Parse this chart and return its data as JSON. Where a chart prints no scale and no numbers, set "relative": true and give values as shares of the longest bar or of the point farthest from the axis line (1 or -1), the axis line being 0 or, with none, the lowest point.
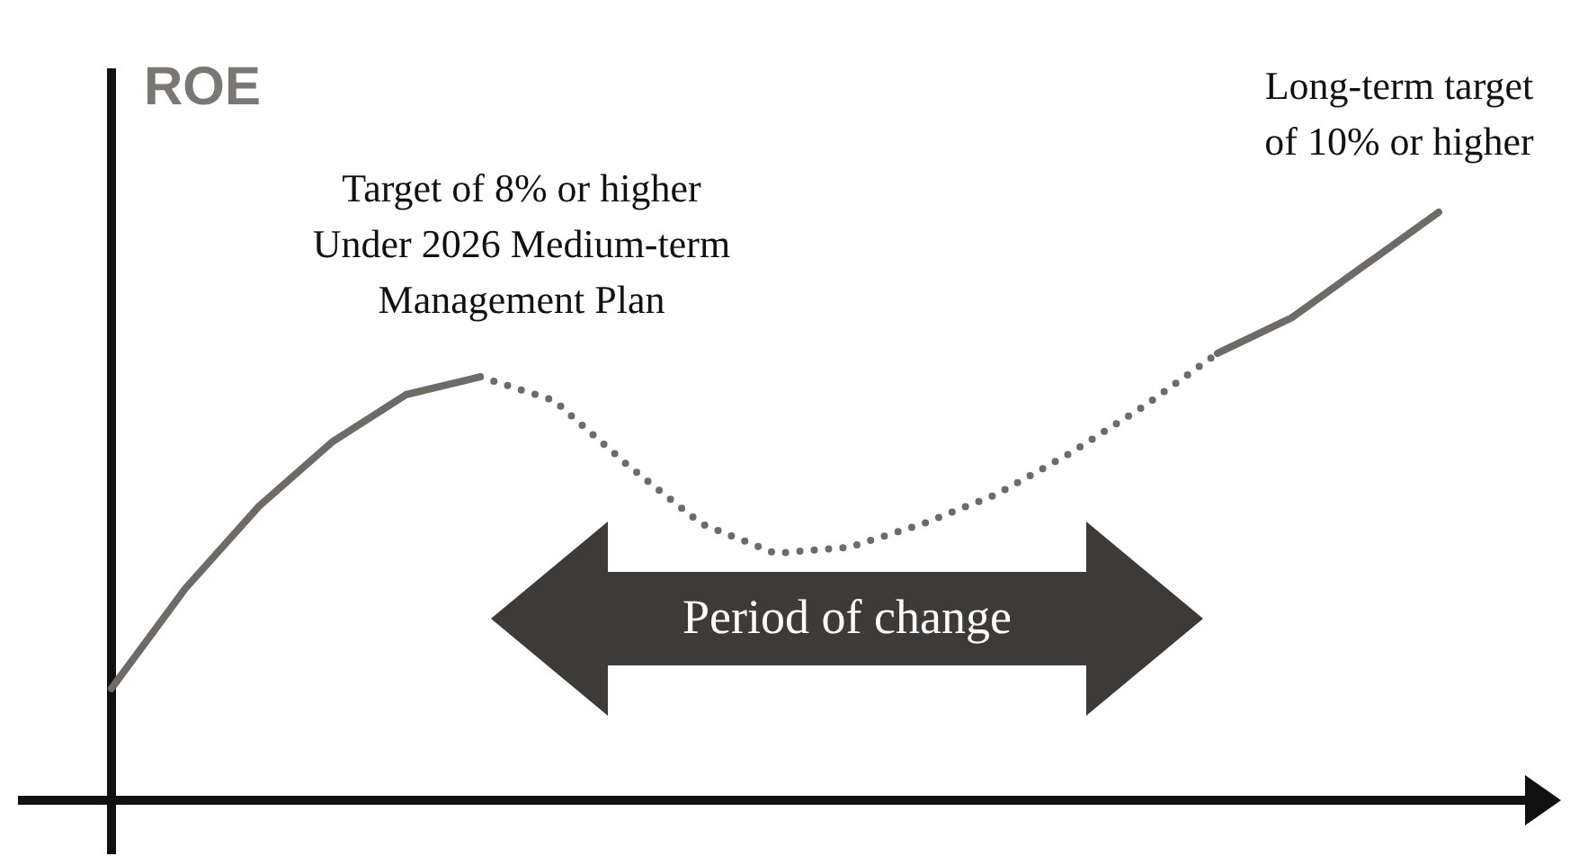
{
  "chart_data": {
    "type": "line",
    "relative": true,
    "ylabel": "ROE",
    "categories": [
      null,
      null,
      null,
      null,
      null,
      null,
      null,
      null,
      null,
      null,
      null,
      null,
      null,
      null,
      null,
      null,
      null,
      null,
      null
    ],
    "series": [
      {
        "color": "#6e6a66",
        "line_style": "solid",
        "values": [
          0.19,
          0.36,
          0.5,
          0.61,
          0.69,
          0.72,
          null,
          null,
          null,
          null,
          null,
          null,
          null,
          null,
          null,
          null,
          null,
          null,
          null
        ]
      },
      {
        "color": "#6e6a66",
        "line_style": "dotted",
        "values": [
          null,
          null,
          null,
          null,
          null,
          0.72,
          0.68,
          0.57,
          0.47,
          0.42,
          0.43,
          0.47,
          0.52,
          0.59,
          0.67,
          0.76,
          null,
          null,
          null
        ]
      },
      {
        "color": "#6e6a66",
        "line_style": "solid",
        "values": [
          null,
          null,
          null,
          null,
          null,
          null,
          null,
          null,
          null,
          null,
          null,
          null,
          null,
          null,
          null,
          0.76,
          0.82,
          0.91,
          1
        ]
      }
    ],
    "annotations": [
      "Target of 8% or higher\nUnder 2026 Medium-term\nManagement Plan",
      "Long-term target\nof 10% or higher",
      "Period of change"
    ],
    "marker": "none"
  }
}
